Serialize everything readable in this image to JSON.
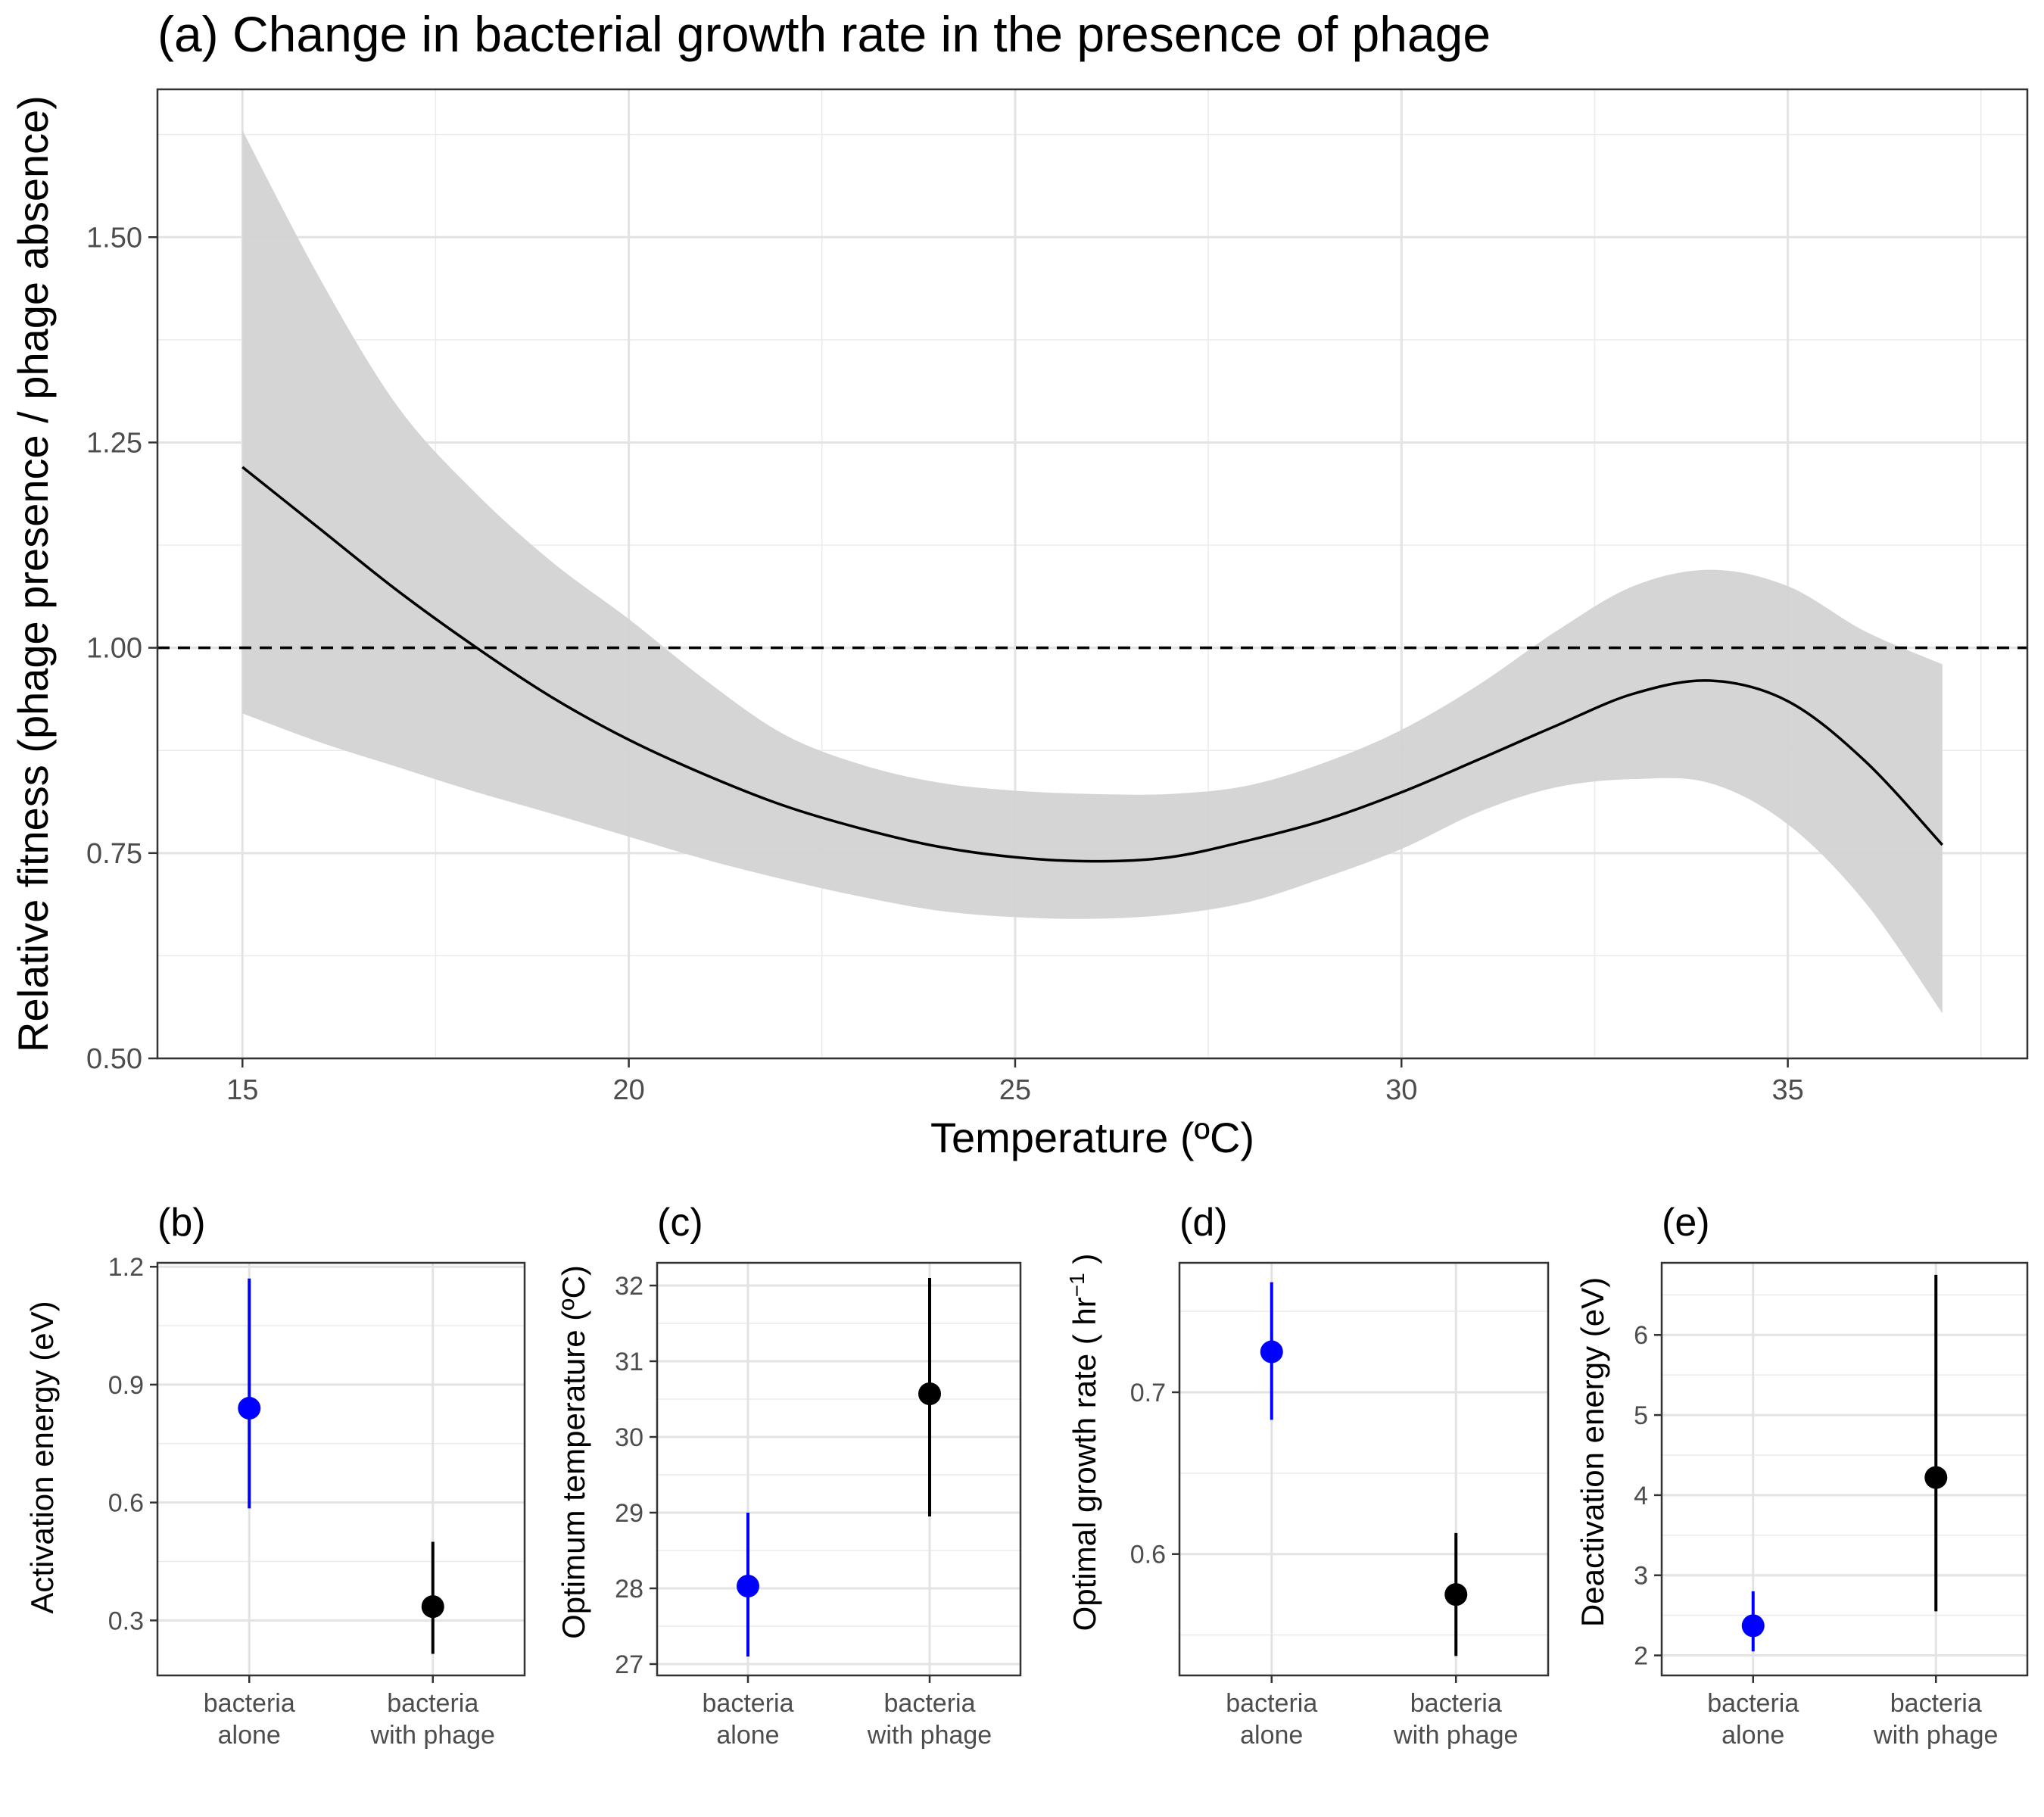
{
  "chart_data": [
    {
      "panel": "a",
      "type": "line",
      "title": "(a) Change in bacterial growth rate in the presence of phage",
      "xlabel": "Temperature (ºC)",
      "ylabel": "Relative fitness (phage presence / phage absence)",
      "xlim": [
        13.9,
        38.1
      ],
      "ylim": [
        0.5,
        1.68
      ],
      "xticks": [
        "15",
        "20",
        "25",
        "30",
        "35"
      ],
      "xtick_values": [
        15,
        20,
        25,
        30,
        35
      ],
      "yticks": [
        "0.50",
        "0.75",
        "1.00",
        "1.25",
        "1.50"
      ],
      "ytick_values": [
        0.5,
        0.75,
        1.0,
        1.25,
        1.5
      ],
      "reference_line": {
        "y": 1.0,
        "style": "dashed"
      },
      "grid": true,
      "series": [
        {
          "role": "fit",
          "color": "#000000",
          "x": [
            15,
            16,
            17,
            18,
            19,
            20,
            21,
            22,
            23,
            24,
            25,
            26,
            27,
            28,
            29,
            30,
            31,
            32,
            33,
            34,
            35,
            36,
            37
          ],
          "y": [
            1.22,
            1.145,
            1.07,
            1.002,
            0.94,
            0.888,
            0.845,
            0.808,
            0.78,
            0.758,
            0.745,
            0.74,
            0.745,
            0.765,
            0.79,
            0.824,
            0.864,
            0.905,
            0.944,
            0.96,
            0.935,
            0.862,
            0.76
          ]
        },
        {
          "role": "confidence band",
          "color": "#d3d3d3",
          "x": [
            15,
            16,
            17,
            18,
            19,
            20,
            21,
            22,
            23,
            24,
            25,
            26,
            27,
            28,
            29,
            30,
            31,
            32,
            33,
            34,
            35,
            36,
            37
          ],
          "lower": [
            0.92,
            0.885,
            0.855,
            0.825,
            0.798,
            0.77,
            0.742,
            0.718,
            0.697,
            0.68,
            0.672,
            0.67,
            0.675,
            0.69,
            0.72,
            0.755,
            0.8,
            0.83,
            0.84,
            0.835,
            0.785,
            0.69,
            0.555
          ],
          "upper": [
            1.63,
            1.45,
            1.295,
            1.19,
            1.105,
            1.035,
            0.96,
            0.895,
            0.858,
            0.836,
            0.826,
            0.822,
            0.822,
            0.832,
            0.86,
            0.9,
            0.955,
            1.02,
            1.075,
            1.095,
            1.075,
            1.02,
            0.98
          ]
        }
      ]
    },
    {
      "panel": "b",
      "type": "scatter",
      "title": "(b)",
      "xlabel": "",
      "ylabel": "Activation energy (eV)",
      "ylim": [
        0.16,
        1.21
      ],
      "yticks": [
        "0.3",
        "0.6",
        "0.9",
        "1.2"
      ],
      "ytick_values": [
        0.3,
        0.6,
        0.9,
        1.2
      ],
      "categories": [
        "bacteria\nalone",
        "bacteria\nwith phage"
      ],
      "points": [
        {
          "category": "bacteria alone",
          "value": 0.84,
          "lower": 0.585,
          "upper": 1.17,
          "color": "#0000ff"
        },
        {
          "category": "bacteria with phage",
          "value": 0.335,
          "lower": 0.215,
          "upper": 0.5,
          "color": "#000000"
        }
      ]
    },
    {
      "panel": "c",
      "type": "scatter",
      "title": "(c)",
      "xlabel": "",
      "ylabel": "Optimum temperature (ºC)",
      "ylim": [
        26.85,
        32.3
      ],
      "yticks": [
        "27",
        "28",
        "29",
        "30",
        "31",
        "32"
      ],
      "ytick_values": [
        27,
        28,
        29,
        30,
        31,
        32
      ],
      "categories": [
        "bacteria\nalone",
        "bacteria\nwith phage"
      ],
      "points": [
        {
          "category": "bacteria alone",
          "value": 28.03,
          "lower": 27.1,
          "upper": 29.0,
          "color": "#0000ff"
        },
        {
          "category": "bacteria with phage",
          "value": 30.57,
          "lower": 28.95,
          "upper": 32.1,
          "color": "#000000"
        }
      ]
    },
    {
      "panel": "d",
      "type": "scatter",
      "title": "(d)",
      "xlabel": "",
      "ylabel": "Optimal growth rate ( hr−1 )",
      "ylabel_parts": [
        "Optimal growth rate ( hr",
        "−1",
        " )"
      ],
      "ylim": [
        0.525,
        0.78
      ],
      "yticks": [
        "0.6",
        "0.7"
      ],
      "ytick_values": [
        0.6,
        0.7
      ],
      "categories": [
        "bacteria\nalone",
        "bacteria\nwith phage"
      ],
      "points": [
        {
          "category": "bacteria alone",
          "value": 0.725,
          "lower": 0.683,
          "upper": 0.768,
          "color": "#0000ff"
        },
        {
          "category": "bacteria with phage",
          "value": 0.575,
          "lower": 0.537,
          "upper": 0.613,
          "color": "#000000"
        }
      ]
    },
    {
      "panel": "e",
      "type": "scatter",
      "title": "(e)",
      "xlabel": "",
      "ylabel": "Deactivation energy (eV)",
      "ylim": [
        1.75,
        6.9
      ],
      "yticks": [
        "2",
        "3",
        "4",
        "5",
        "6"
      ],
      "ytick_values": [
        2,
        3,
        4,
        5,
        6
      ],
      "categories": [
        "bacteria\nalone",
        "bacteria\nwith phage"
      ],
      "points": [
        {
          "category": "bacteria alone",
          "value": 2.37,
          "lower": 2.05,
          "upper": 2.8,
          "color": "#0000ff"
        },
        {
          "category": "bacteria with phage",
          "value": 4.22,
          "lower": 2.55,
          "upper": 6.75,
          "color": "#000000"
        }
      ]
    }
  ]
}
